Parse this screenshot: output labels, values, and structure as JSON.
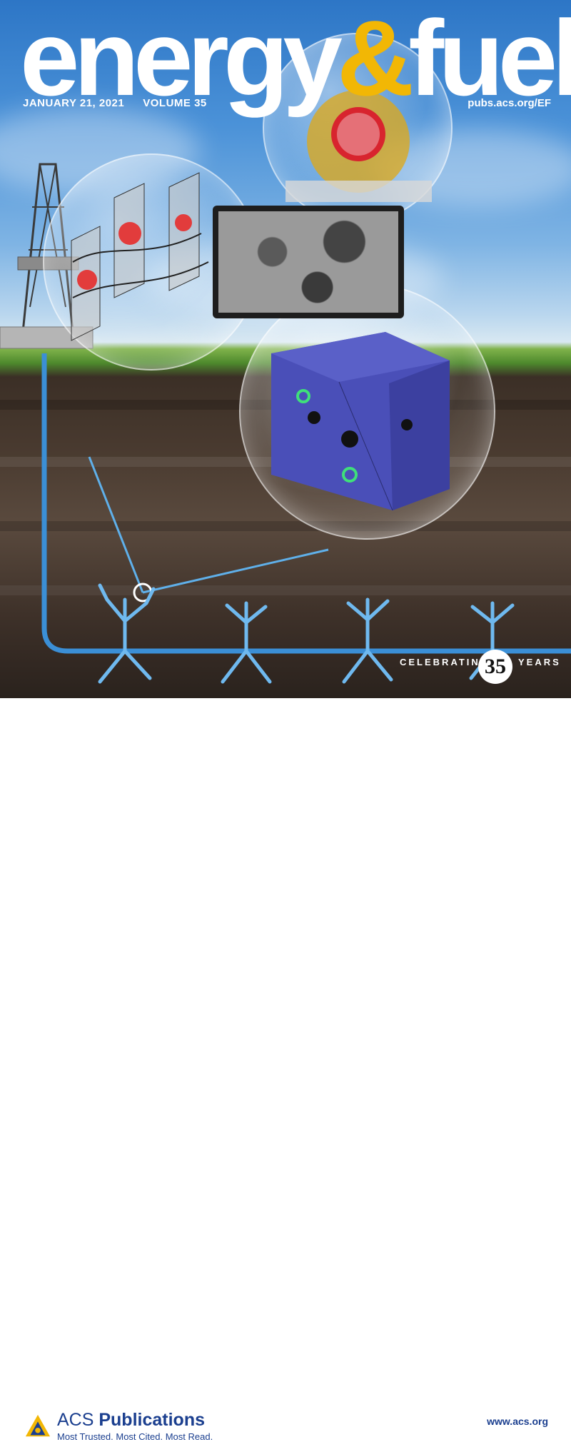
{
  "magazine": {
    "title_part1": "energy",
    "title_amp": "&",
    "title_part2": "fuels",
    "issue_date": "JANUARY 21, 2021",
    "volume": "VOLUME 35",
    "url": "pubs.acs.org/EF"
  },
  "anniversary": {
    "prefix": "CELEBRATING",
    "number": "35",
    "suffix": "YEARS"
  },
  "footer": {
    "publisher_light": "ACS ",
    "publisher_bold": "Publications",
    "tagline": "Most Trusted. Most Cited. Most Read.",
    "website": "www.acs.org"
  },
  "colors": {
    "accent_yellow": "#f2b705",
    "pipe_blue": "#3b8fd6",
    "acs_blue": "#1b3f8f"
  }
}
